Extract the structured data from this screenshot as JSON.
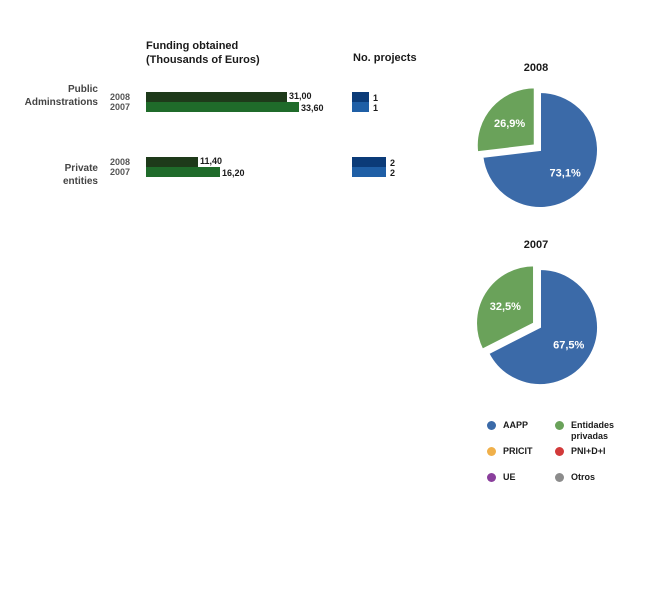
{
  "colors": {
    "bar_2008": "#1e3a1a",
    "bar_2007": "#1f6b2a",
    "proj_2008": "#0b3b78",
    "proj_2007": "#1f5fa6",
    "aapp": "#3b6aa8",
    "entidades": "#6aa25a",
    "pricit": "#f0b04a",
    "pni": "#d23a3a",
    "ue": "#8a3f9c",
    "otros": "#8c8c8c"
  },
  "headers": {
    "funding": "Funding obtained\n(Thousands of Euros)",
    "projects": "No. projects"
  },
  "chart_data": [
    {
      "type": "bar",
      "orientation": "horizontal",
      "title": "Funding obtained\n(Thousands of Euros)",
      "categories": [
        {
          "label": "Public\nAdminstrations",
          "years": [
            "2008",
            "2007"
          ]
        },
        {
          "label": "Private\nentities",
          "years": [
            "2008",
            "2007"
          ]
        }
      ],
      "series": [
        {
          "name": "2008",
          "values": [
            31.0,
            11.4
          ],
          "value_labels": [
            "31,00",
            "11,40"
          ]
        },
        {
          "name": "2007",
          "values": [
            33.6,
            16.2
          ],
          "value_labels": [
            "33,60",
            "16,20"
          ]
        }
      ]
    },
    {
      "type": "bar",
      "orientation": "horizontal",
      "title": "No. projects",
      "categories": [
        "Public Adminstrations",
        "Private entities"
      ],
      "series": [
        {
          "name": "2008",
          "values": [
            1,
            2
          ],
          "value_labels": [
            "1",
            "2"
          ]
        },
        {
          "name": "2007",
          "values": [
            1,
            2
          ],
          "value_labels": [
            "1",
            "2"
          ]
        }
      ]
    },
    {
      "type": "pie",
      "title": "2008",
      "slices": [
        {
          "label": "AAPP",
          "value": 73.1,
          "value_label": "73,1%"
        },
        {
          "label": "Entidades privadas",
          "value": 26.9,
          "value_label": "26,9%"
        }
      ]
    },
    {
      "type": "pie",
      "title": "2007",
      "slices": [
        {
          "label": "AAPP",
          "value": 67.5,
          "value_label": "67,5%"
        },
        {
          "label": "Entidades privadas",
          "value": 32.5,
          "value_label": "32,5%"
        }
      ]
    }
  ],
  "legend": [
    {
      "label": "AAPP",
      "color_key": "aapp"
    },
    {
      "label": "Entidades privadas",
      "color_key": "entidades"
    },
    {
      "label": "PRICIT",
      "color_key": "pricit"
    },
    {
      "label": "PNI+D+I",
      "color_key": "pni"
    },
    {
      "label": "UE",
      "color_key": "ue"
    },
    {
      "label": "Otros",
      "color_key": "otros"
    }
  ]
}
